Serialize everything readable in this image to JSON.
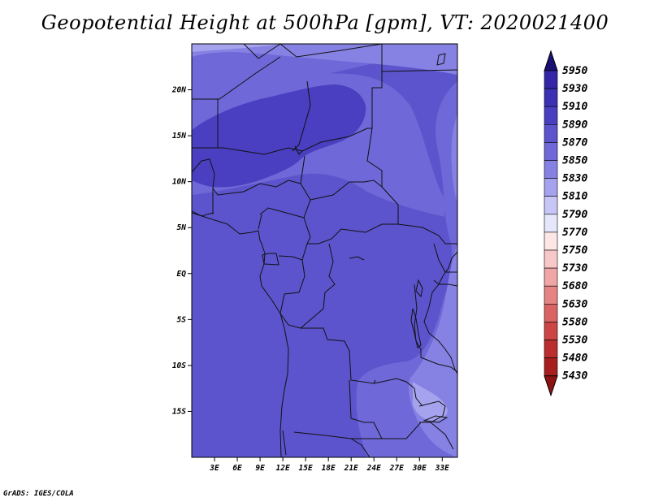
{
  "title": "Geopotential Height at 500hPa [gpm], VT: 2020021400",
  "footer": "GrADS: IGES/COLA",
  "map": {
    "lon_range": [
      0,
      35
    ],
    "lat_range": [
      -20,
      25
    ],
    "lon_ticks": [
      "3E",
      "6E",
      "9E",
      "12E",
      "15E",
      "18E",
      "21E",
      "24E",
      "27E",
      "30E",
      "33E"
    ],
    "lat_ticks": [
      "20N",
      "15N",
      "10N",
      "5N",
      "EQ",
      "5S",
      "10S",
      "15S"
    ]
  },
  "colorbar": {
    "levels": [
      "5950",
      "5930",
      "5910",
      "5890",
      "5870",
      "5850",
      "5830",
      "5810",
      "5790",
      "5770",
      "5750",
      "5730",
      "5680",
      "5630",
      "5580",
      "5530",
      "5480",
      "5430"
    ],
    "colors": [
      "#2c1e8c",
      "#3426a6",
      "#3b31b4",
      "#4a3fc0",
      "#5c54cc",
      "#6e68d8",
      "#8682e4",
      "#a6a3ee",
      "#c7c6f6",
      "#e6e6fb",
      "#fde6e6",
      "#f8c8c8",
      "#f0a6a6",
      "#e68484",
      "#da6464",
      "#cc4646",
      "#bb2e2e",
      "#a61e1e"
    ],
    "top_color": "#1a0f72",
    "bottom_color": "#8f1212"
  },
  "field_colors": {
    "c5890": "#4a3fc0",
    "c5870": "#5c54cc",
    "c5850": "#6e68d8",
    "c5830": "#8682e4",
    "c5810": "#a6a3ee"
  }
}
